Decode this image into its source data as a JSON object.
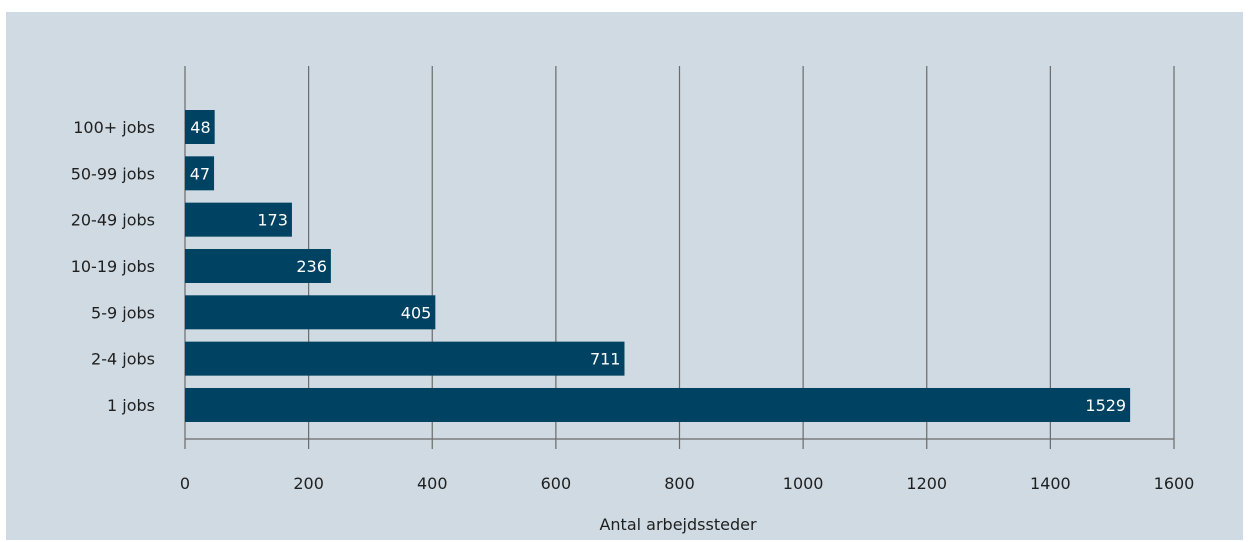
{
  "colors": {
    "background": "#cfdae2",
    "bar": "#004261",
    "grid": "#6b6b6b",
    "bar_label": "#ffffff",
    "text": "#1f1f1f"
  },
  "chart_data": {
    "type": "bar",
    "orientation": "horizontal",
    "categories": [
      "100+ jobs",
      "50-99 jobs",
      "20-49 jobs",
      "10-19 jobs",
      "5-9 jobs",
      "2-4 jobs",
      "1 jobs"
    ],
    "values": [
      48,
      47,
      173,
      236,
      405,
      711,
      1529
    ],
    "value_labels": [
      "48",
      "47",
      "173",
      "236",
      "405",
      "711",
      "1529"
    ],
    "xlabel": "Antal arbejdssteder",
    "ylabel": "",
    "xlim": [
      0,
      1600
    ],
    "xticks": [
      0,
      200,
      400,
      600,
      800,
      1000,
      1200,
      1400,
      1600
    ],
    "xtick_labels": [
      "0",
      "200",
      "400",
      "600",
      "800",
      "1000",
      "1200",
      "1400",
      "1600"
    ],
    "grid": "vertical",
    "legend": "none"
  }
}
